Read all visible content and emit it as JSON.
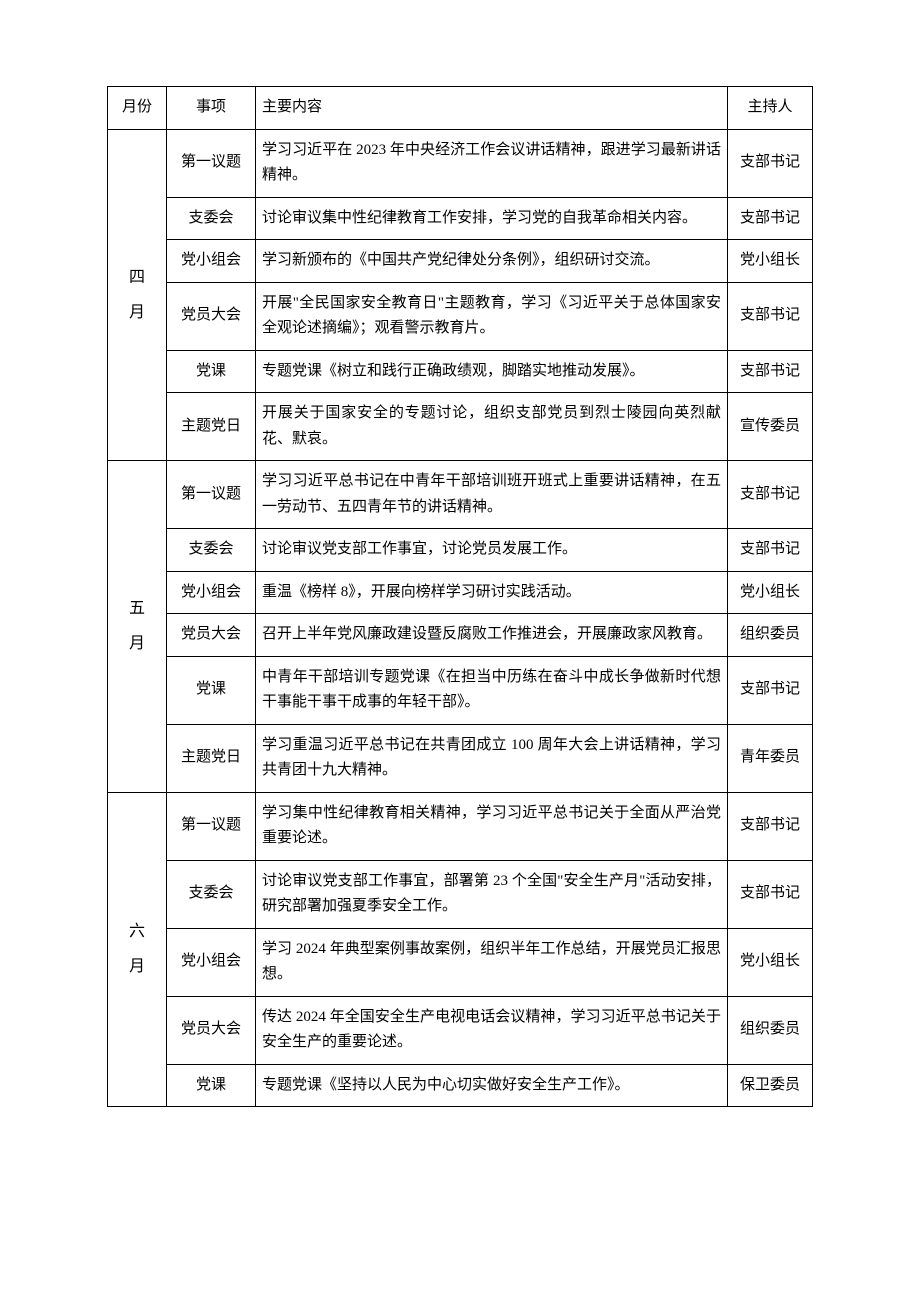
{
  "headers": {
    "month": "月份",
    "item": "事项",
    "content": "主要内容",
    "host": "主持人"
  },
  "months": [
    {
      "label": "四月",
      "rows": [
        {
          "item": "第一议题",
          "content": "学习习近平在 2023 年中央经济工作会议讲话精神，跟进学习最新讲话精神。",
          "host": "支部书记"
        },
        {
          "item": "支委会",
          "content": "讨论审议集中性纪律教育工作安排，学习党的自我革命相关内容。",
          "host": "支部书记"
        },
        {
          "item": "党小组会",
          "content": "学习新颁布的《中国共产党纪律处分条例》，组织研讨交流。",
          "host": "党小组长"
        },
        {
          "item": "党员大会",
          "content": "开展\"全民国家安全教育日\"主题教育，学习《习近平关于总体国家安全观论述摘编》；观看警示教育片。",
          "host": "支部书记"
        },
        {
          "item": "党课",
          "content": "专题党课《树立和践行正确政绩观，脚踏实地推动发展》。",
          "host": "支部书记"
        },
        {
          "item": "主题党日",
          "content": "开展关于国家安全的专题讨论，组织支部党员到烈士陵园向英烈献花、默哀。",
          "host": "宣传委员"
        }
      ]
    },
    {
      "label": "五月",
      "rows": [
        {
          "item": "第一议题",
          "content": "学习习近平总书记在中青年干部培训班开班式上重要讲话精神，在五一劳动节、五四青年节的讲话精神。",
          "host": "支部书记"
        },
        {
          "item": "支委会",
          "content": "讨论审议党支部工作事宜，讨论党员发展工作。",
          "host": "支部书记"
        },
        {
          "item": "党小组会",
          "content": "重温《榜样 8》，开展向榜样学习研讨实践活动。",
          "host": "党小组长"
        },
        {
          "item": "党员大会",
          "content": "召开上半年党风廉政建设暨反腐败工作推进会，开展廉政家风教育。",
          "host": "组织委员"
        },
        {
          "item": "党课",
          "content": "中青年干部培训专题党课《在担当中历练在奋斗中成长争做新时代想干事能干事干成事的年轻干部》。",
          "host": "支部书记"
        },
        {
          "item": "主题党日",
          "content": "学习重温习近平总书记在共青团成立 100 周年大会上讲话精神，学习共青团十九大精神。",
          "host": "青年委员"
        }
      ]
    },
    {
      "label": "六月",
      "rows": [
        {
          "item": "第一议题",
          "content": "学习集中性纪律教育相关精神，学习习近平总书记关于全面从严治党重要论述。",
          "host": "支部书记"
        },
        {
          "item": "支委会",
          "content": "讨论审议党支部工作事宜，部署第 23 个全国\"安全生产月\"活动安排，研究部署加强夏季安全工作。",
          "host": "支部书记"
        },
        {
          "item": "党小组会",
          "content": "学习 2024 年典型案例事故案例，组织半年工作总结，开展党员汇报思想。",
          "host": "党小组长"
        },
        {
          "item": "党员大会",
          "content": "传达 2024 年全国安全生产电视电话会议精神，学习习近平总书记关于安全生产的重要论述。",
          "host": "组织委员"
        },
        {
          "item": "党课",
          "content": "专题党课《坚持以人民为中心切实做好安全生产工作》。",
          "host": "保卫委员"
        }
      ]
    }
  ]
}
